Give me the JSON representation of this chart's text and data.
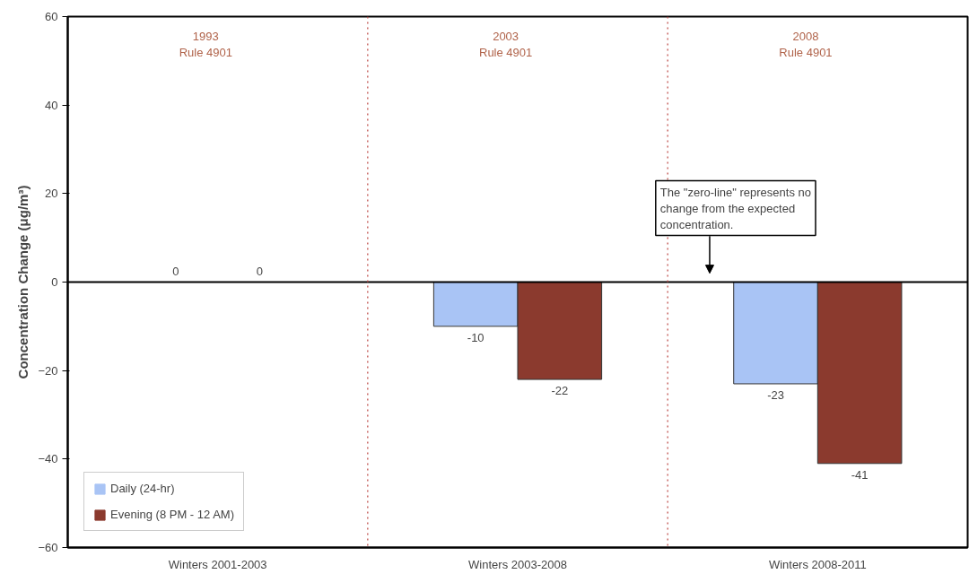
{
  "chart_data": {
    "type": "bar",
    "ylabel": "Concentration Change (μg/m³)",
    "categories": [
      "Winters 2001-2003",
      "Winters 2003-2008",
      "Winters 2008-2011"
    ],
    "series": [
      {
        "name": "Daily (24-hr)",
        "color": "#a9c4f5",
        "values": [
          0,
          -10,
          -23
        ]
      },
      {
        "name": "Evening (8 PM - 12 AM)",
        "color": "#8b3a2e",
        "values": [
          0,
          -22,
          -41
        ]
      }
    ],
    "data_labels": true,
    "ylim": [
      -60,
      60
    ],
    "yticks": [
      -60,
      -40,
      -20,
      0,
      20,
      40,
      60
    ],
    "grid": false,
    "legend": "bottom left",
    "ref_lines": [
      {
        "axis": "y",
        "value": 0,
        "label": null,
        "color": "#000000",
        "line_style": "solid"
      }
    ],
    "annotations": [
      "1993\nRule 4901",
      "2003\nRule 4901",
      "2008\nRule 4901",
      "The \"zero-line\" represents no\nchange from the expected\nconcentration."
    ]
  }
}
